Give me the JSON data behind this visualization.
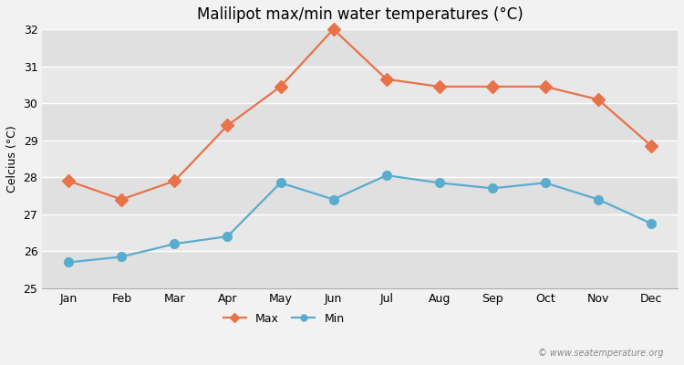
{
  "title": "Malilipot max/min water temperatures (°C)",
  "ylabel": "Celcius (°C)",
  "months": [
    "Jan",
    "Feb",
    "Mar",
    "Apr",
    "May",
    "Jun",
    "Jul",
    "Aug",
    "Sep",
    "Oct",
    "Nov",
    "Dec"
  ],
  "max_temps": [
    27.9,
    27.4,
    27.9,
    29.4,
    30.45,
    32.0,
    30.65,
    30.45,
    30.45,
    30.45,
    30.1,
    28.85
  ],
  "min_temps": [
    25.7,
    25.85,
    26.2,
    26.4,
    27.85,
    27.4,
    28.05,
    27.85,
    27.7,
    27.85,
    27.4,
    26.75
  ],
  "max_color": "#e8724a",
  "min_color": "#5aacce",
  "background_color": "#f2f2f2",
  "plot_bg_color": "#e8e8e8",
  "grid_color": "#ffffff",
  "ylim": [
    25,
    32
  ],
  "yticks": [
    25,
    26,
    27,
    28,
    29,
    30,
    31,
    32
  ],
  "legend_labels": [
    "Max",
    "Min"
  ],
  "watermark": "© www.seatemperature.org",
  "title_fontsize": 12,
  "axis_label_fontsize": 9,
  "tick_fontsize": 9,
  "legend_fontsize": 9,
  "marker_size_max": 7,
  "marker_size_min": 7,
  "line_width": 1.6
}
